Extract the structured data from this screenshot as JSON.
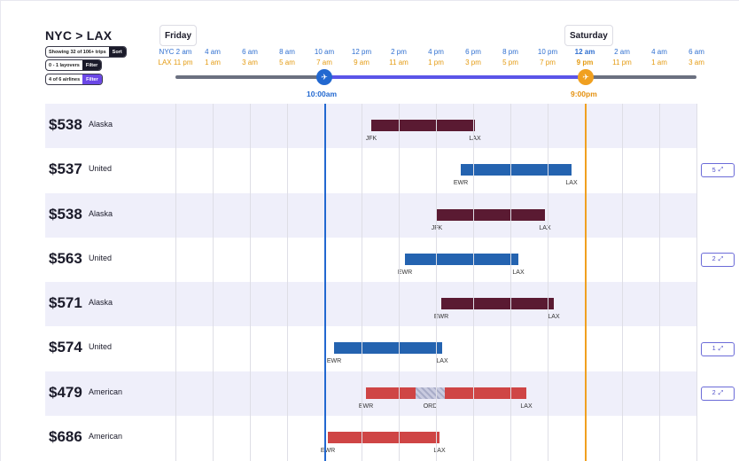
{
  "header": {
    "route": "NYC > LAX",
    "showing_text": "Showing 32 of 106+ trips",
    "sort_label": "Sort",
    "layovers_text": "0 - 1 layovers",
    "layovers_filter": "Filter",
    "airlines_text": "4 of 6 airlines",
    "airlines_filter": "Filter"
  },
  "timeline": {
    "day1": "Friday",
    "day2": "Saturday",
    "ticks": [
      {
        "nyc": "NYC 2 am",
        "lax": "LAX 11 pm"
      },
      {
        "nyc": "4 am",
        "lax": "1 am"
      },
      {
        "nyc": "6 am",
        "lax": "3 am"
      },
      {
        "nyc": "8 am",
        "lax": "5 am"
      },
      {
        "nyc": "10 am",
        "lax": "7 am"
      },
      {
        "nyc": "12 pm",
        "lax": "9 am"
      },
      {
        "nyc": "2 pm",
        "lax": "11 am"
      },
      {
        "nyc": "4 pm",
        "lax": "1 pm"
      },
      {
        "nyc": "6 pm",
        "lax": "3 pm"
      },
      {
        "nyc": "8 pm",
        "lax": "5 pm"
      },
      {
        "nyc": "10 pm",
        "lax": "7 pm"
      },
      {
        "nyc": "12 am",
        "lax": "9 pm"
      },
      {
        "nyc": "2 am",
        "lax": "11 pm"
      },
      {
        "nyc": "4 am",
        "lax": "1 am"
      },
      {
        "nyc": "6 am",
        "lax": "3 am"
      }
    ],
    "depart_after": "10:00am",
    "arrive_before": "9:00pm"
  },
  "colors": {
    "alaska": "#5a1a32",
    "united": "#2463b0",
    "american": "#cf4545",
    "depart": "#2268d0",
    "arrive": "#f0a020"
  },
  "flights": [
    {
      "price": "$538",
      "airline": "Alaska",
      "color": "alaska",
      "from": "JFK",
      "to": "LAX",
      "expand": ""
    },
    {
      "price": "$537",
      "airline": "United",
      "color": "united",
      "from": "EWR",
      "to": "LAX",
      "expand": "5"
    },
    {
      "price": "$538",
      "airline": "Alaska",
      "color": "alaska",
      "from": "JFK",
      "to": "LAX",
      "expand": ""
    },
    {
      "price": "$563",
      "airline": "United",
      "color": "united",
      "from": "EWR",
      "to": "LAX",
      "expand": "2"
    },
    {
      "price": "$571",
      "airline": "Alaska",
      "color": "alaska",
      "from": "EWR",
      "to": "LAX",
      "expand": ""
    },
    {
      "price": "$574",
      "airline": "United",
      "color": "united",
      "from": "EWR",
      "to": "LAX",
      "expand": "1"
    },
    {
      "price": "$479",
      "airline": "American",
      "color": "american",
      "from": "EWR",
      "via": "ORD",
      "to": "LAX",
      "expand": "2"
    },
    {
      "price": "$686",
      "airline": "American",
      "color": "american",
      "from": "EWR",
      "to": "LAX",
      "expand": ""
    }
  ]
}
